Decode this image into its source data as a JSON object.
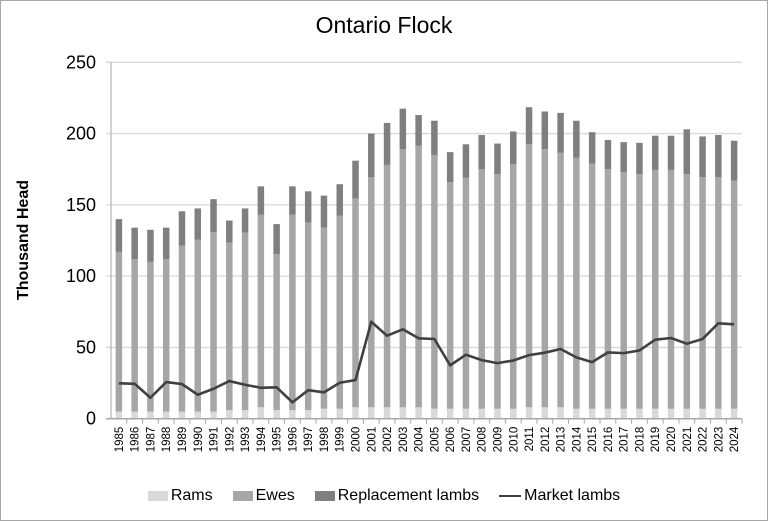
{
  "chart_data": {
    "type": "bar",
    "title": "Ontario Flock",
    "xlabel": "",
    "ylabel": "Thousand Head",
    "ylim": [
      0,
      250
    ],
    "yticks": [
      0,
      50,
      100,
      150,
      200,
      250
    ],
    "grid": true,
    "legend_position": "bottom",
    "stacked": true,
    "categories": [
      "1985",
      "1986",
      "1987",
      "1988",
      "1989",
      "1990",
      "1991",
      "1992",
      "1993",
      "1994",
      "1995",
      "1996",
      "1997",
      "1998",
      "1999",
      "2000",
      "2001",
      "2002",
      "2003",
      "2004",
      "2005",
      "2006",
      "2007",
      "2008",
      "2009",
      "2010",
      "2011",
      "2012",
      "2013",
      "2014",
      "2015",
      "2016",
      "2017",
      "2018",
      "2019",
      "2020",
      "2021",
      "2022",
      "2023",
      "2024"
    ],
    "series": [
      {
        "name": "Rams",
        "type": "bar",
        "color": "#d9d9d9",
        "values": [
          5,
          5,
          5,
          5,
          5,
          5,
          5,
          6,
          6,
          8,
          6,
          6,
          6,
          7,
          7,
          8,
          8,
          8,
          8,
          8,
          7,
          7,
          7,
          7,
          7,
          7,
          8,
          8,
          8,
          7,
          7,
          7,
          7,
          7,
          7,
          7,
          7,
          7,
          7,
          7
        ]
      },
      {
        "name": "Ewes",
        "type": "bar",
        "color": "#a6a6a6",
        "values": [
          112,
          107,
          105,
          107,
          116.5,
          120.5,
          126,
          117.5,
          124.5,
          135,
          109.5,
          137,
          131.5,
          127,
          135.5,
          146.5,
          161.5,
          170,
          181,
          183.5,
          178,
          159,
          162,
          168,
          164.5,
          171.5,
          184.5,
          181,
          178.5,
          176,
          172,
          168,
          166,
          164.5,
          167.5,
          167.5,
          164.5,
          162.5,
          162.5,
          160
        ]
      },
      {
        "name": "Replacement lambs",
        "type": "bar",
        "color": "#7f7f7f",
        "values": [
          23,
          22,
          22.5,
          22,
          24,
          22,
          23,
          15.5,
          17,
          20,
          21,
          20,
          22,
          22.5,
          22,
          26.5,
          30.5,
          29.5,
          28.5,
          21.5,
          24,
          21,
          23.5,
          24,
          21.5,
          23,
          26,
          26.5,
          28,
          26,
          22,
          20.5,
          21,
          22,
          24,
          24,
          31.5,
          28.5,
          29.5,
          28
        ]
      },
      {
        "name": "Market lambs",
        "type": "line",
        "color": "#404040",
        "values": [
          24.8,
          24.5,
          14.7,
          25.7,
          24.3,
          16.8,
          21,
          26.4,
          23.8,
          21.7,
          22,
          11.5,
          20,
          18.5,
          25.2,
          27.1,
          68,
          58.2,
          62.7,
          56.4,
          55.9,
          37.4,
          44.9,
          41.1,
          39,
          40.8,
          44.6,
          46.3,
          48.9,
          43,
          39.7,
          46.5,
          46,
          47.9,
          55.4,
          56.6,
          52.6,
          55.9,
          66.9,
          66.2
        ]
      }
    ]
  },
  "legend": {
    "items": [
      {
        "label": "Rams",
        "color": "#d9d9d9",
        "kind": "box"
      },
      {
        "label": "Ewes",
        "color": "#a6a6a6",
        "kind": "box"
      },
      {
        "label": "Replacement lambs",
        "color": "#7f7f7f",
        "kind": "box"
      },
      {
        "label": "Market lambs",
        "color": "#404040",
        "kind": "line"
      }
    ]
  }
}
